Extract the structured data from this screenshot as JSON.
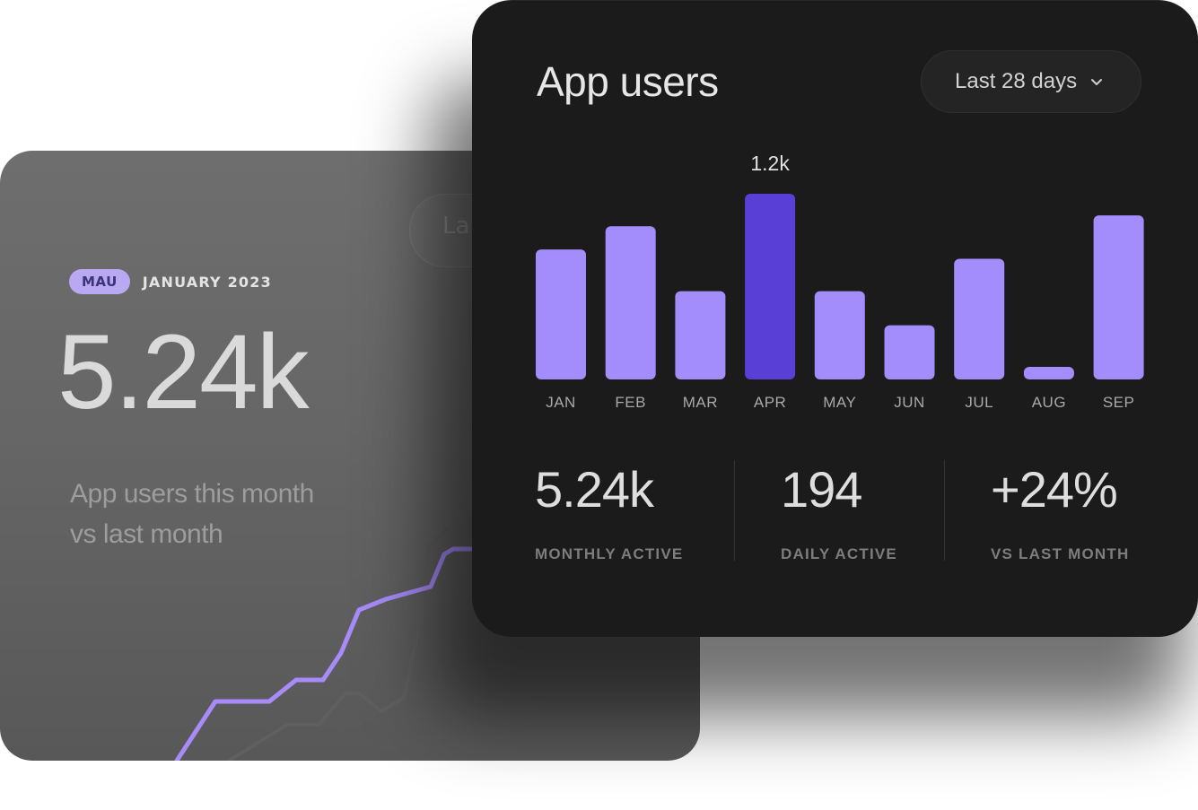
{
  "mau_card": {
    "ghost_select_label": "La",
    "badge": "MAU",
    "period": "JANUARY 2023",
    "value": "5.24k",
    "description_line1": "App users this month",
    "description_line2": "vs last month",
    "line_colors": {
      "current": "#a78bfa",
      "previous": "#7a7a7a"
    }
  },
  "app_users_card": {
    "title": "App users",
    "range_select": {
      "value": "Last 28 days",
      "icon": "chevron-down-icon"
    },
    "stats": [
      {
        "value": "5.24k",
        "label": "MONTHLY ACTIVE"
      },
      {
        "value": "194",
        "label": "DAILY ACTIVE"
      },
      {
        "value": "+24%",
        "label": "VS LAST MONTH"
      }
    ],
    "colors": {
      "bar": "#a38dfc",
      "highlight": "#5a3fd6",
      "card": "#1b1b1c"
    }
  },
  "chart_data": {
    "type": "bar",
    "title": "App users",
    "categories": [
      "JAN",
      "FEB",
      "MAR",
      "APR",
      "MAY",
      "JUN",
      "JUL",
      "AUG",
      "SEP"
    ],
    "values": [
      840,
      990,
      570,
      1200,
      570,
      350,
      780,
      80,
      1060
    ],
    "highlight_index": 3,
    "highlight_label": "1.2k",
    "ylim": [
      0,
      1200
    ],
    "grid": false,
    "legend": "none"
  }
}
